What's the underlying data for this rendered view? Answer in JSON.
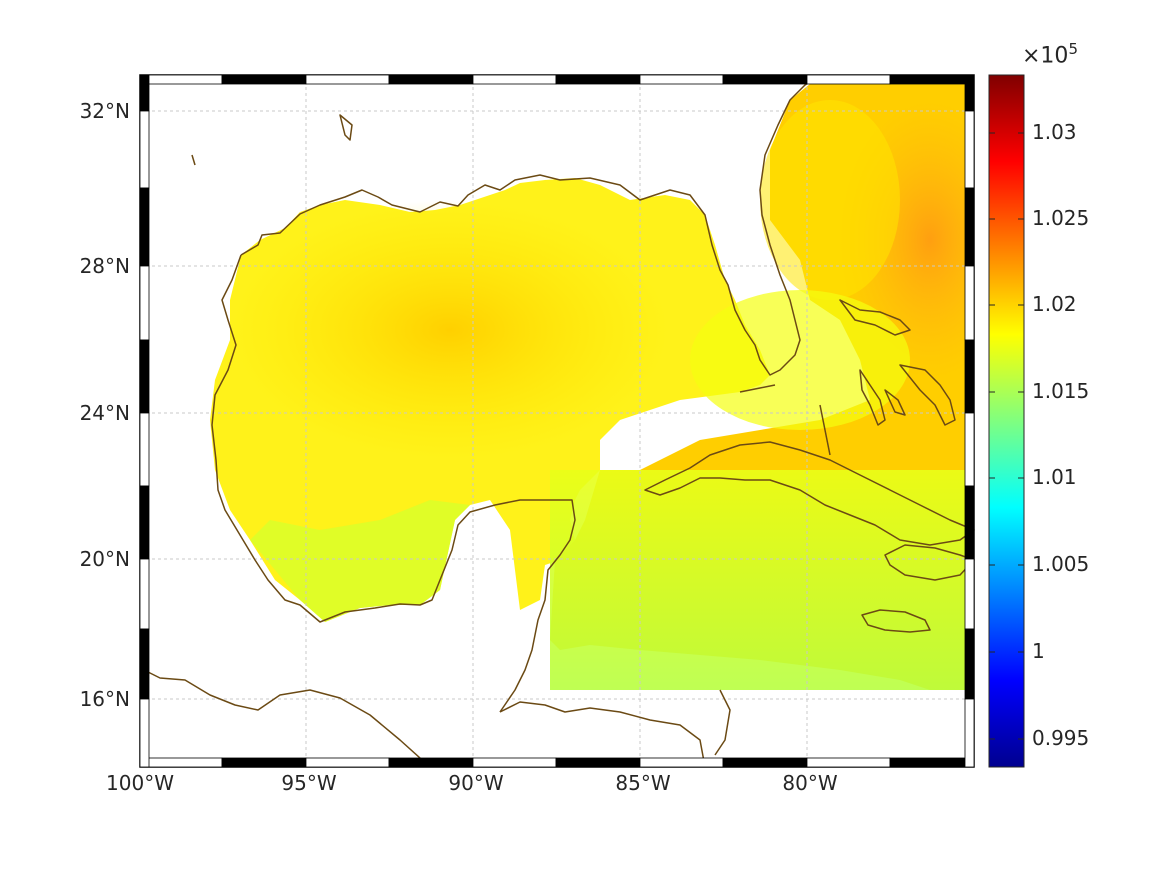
{
  "map": {
    "lat_ticks": [
      "32°N",
      "28°N",
      "24°N",
      "20°N",
      "16°N"
    ],
    "lon_ticks": [
      "100°W",
      "95°W",
      "90°W",
      "85°W",
      "80°W"
    ],
    "colors": {
      "coast": "#6b4a14",
      "frame": "#000000",
      "grid": "#c8c8c8"
    }
  },
  "colorbar": {
    "multiplier_base": "×10",
    "multiplier_exp": "5",
    "ticks": [
      "1.03",
      "1.025",
      "1.02",
      "1.015",
      "1.01",
      "1.005",
      "1",
      "0.995"
    ],
    "colormap": "jet"
  }
}
